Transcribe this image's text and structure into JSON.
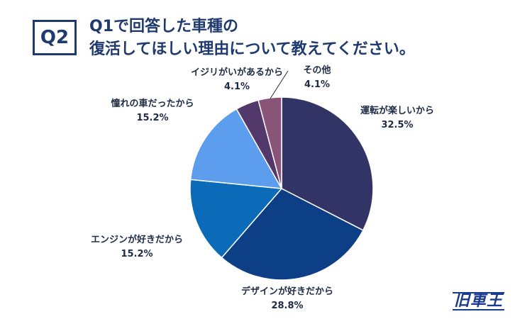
{
  "header": {
    "badge": "Q2",
    "title_line1": "Q1で回答した車種の",
    "title_line2": "復活してほしい理由について教えてください。"
  },
  "logo_text": "旧車王",
  "chart_data": {
    "type": "pie",
    "start_angle_deg": 0,
    "direction": "clockwise",
    "slices": [
      {
        "label": "運転が楽しいから",
        "value": 32.5,
        "pct_text": "32.5%",
        "color": "#323466"
      },
      {
        "label": "デザインが好きだから",
        "value": 28.8,
        "pct_text": "28.8%",
        "color": "#0d3f87"
      },
      {
        "label": "エンジンが好きだから",
        "value": 15.2,
        "pct_text": "15.2%",
        "color": "#0b6bb8"
      },
      {
        "label": "憧れの車だったから",
        "value": 15.2,
        "pct_text": "15.2%",
        "color": "#5d9ded"
      },
      {
        "label": "イジリがいがあるから",
        "value": 4.1,
        "pct_text": "4.1%",
        "color": "#53396b"
      },
      {
        "label": "その他",
        "value": 4.1,
        "pct_text": "4.1%",
        "color": "#8a5478"
      }
    ]
  }
}
